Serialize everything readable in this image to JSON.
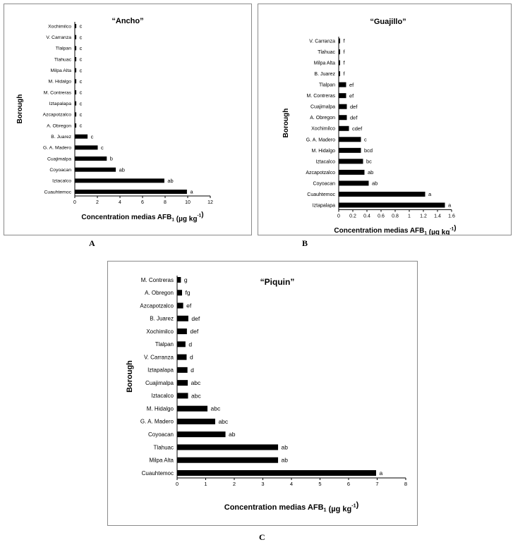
{
  "panels": {
    "a": {
      "letter": "A"
    },
    "b": {
      "letter": "B"
    },
    "c": {
      "letter": "C"
    }
  },
  "chart_data": [
    {
      "id": "a",
      "type": "bar",
      "orientation": "horizontal",
      "title": "“Ancho”",
      "xlabel": "Concentration medias AFB",
      "xlabel_sub": "1",
      "xlabel_unit": " (µg kg",
      "xlabel_sup": "-1",
      "xlabel_end": ")",
      "ylabel": "Borough",
      "xlim": [
        0,
        12
      ],
      "ticks": [
        0,
        2,
        4,
        6,
        8,
        10,
        12
      ],
      "categories": [
        "Xochimilco",
        "V. Carranza",
        "Tlalpan",
        "Tlahuac",
        "Milpa Alta",
        "M. Hidalgo",
        "M. Contreras",
        "Iztapalapa",
        "Azcapotzalco",
        "A. Obregon",
        "B. Juarez",
        "G. A. Madero",
        "Cuajimalpa",
        "Coyoacan",
        "Iztacalco",
        "Cuauhtemoc"
      ],
      "values": [
        0.1,
        0.1,
        0.1,
        0.1,
        0.1,
        0.1,
        0.1,
        0.1,
        0.1,
        0.1,
        1.1,
        2.0,
        2.8,
        3.6,
        7.9,
        9.9
      ],
      "letters": [
        "c",
        "c",
        "c",
        "c",
        "c",
        "c",
        "c",
        "c",
        "c",
        "c",
        "c",
        "c",
        "b",
        "ab",
        "ab",
        "a"
      ]
    },
    {
      "id": "b",
      "type": "bar",
      "orientation": "horizontal",
      "title": "“Guajillo”",
      "xlabel": "Concentration medias AFB",
      "xlabel_sub": "1",
      "xlabel_unit": " (µg kg",
      "xlabel_sup": "-1",
      "xlabel_end": ")",
      "ylabel": "Borough",
      "xlim": [
        0,
        1.6
      ],
      "ticks": [
        0,
        0.2,
        0.4,
        0.6,
        0.8,
        1,
        1.2,
        1.4,
        1.6
      ],
      "categories": [
        "V. Carranza",
        "Tlahuac",
        "Milpa Alta",
        "B. Juarez",
        "Tlalpan",
        "M. Contreras",
        "Cuajimalpa",
        "A. Obregon",
        "Xochimilco",
        "G. A. Madero",
        "M. Hidalgo",
        "Iztacalco",
        "Azcapotzalco",
        "Coyoacan",
        "Cuauhtemoc",
        "Iztapalapa"
      ],
      "values": [
        0.01,
        0.01,
        0.01,
        0.01,
        0.1,
        0.1,
        0.11,
        0.11,
        0.14,
        0.31,
        0.31,
        0.34,
        0.36,
        0.42,
        1.22,
        1.5
      ],
      "letters": [
        "f",
        "f",
        "f",
        "f",
        "ef",
        "ef",
        "def",
        "def",
        "cdef",
        "c",
        "bcd",
        "bc",
        "ab",
        "ab",
        "a",
        "a"
      ]
    },
    {
      "id": "c",
      "type": "bar",
      "orientation": "horizontal",
      "title": "“Piquin”",
      "xlabel": "Concentration medias AFB",
      "xlabel_sub": "1",
      "xlabel_unit": " (µg kg",
      "xlabel_sup": "-1",
      "xlabel_end": ")",
      "ylabel": "Borough",
      "xlim": [
        0,
        8
      ],
      "ticks": [
        0,
        1,
        2,
        3,
        4,
        5,
        6,
        7,
        8
      ],
      "categories": [
        "M. Contreras",
        "A. Obregon",
        "Azcapotzalco",
        "B. Juarez",
        "Xochimilco",
        "Tlalpan",
        "V. Carranza",
        "Iztapalapa",
        "Cuajimalpa",
        "Iztacalco",
        "M. Hidalgo",
        "G. A. Madero",
        "Coyoacan",
        "Tlahuac",
        "Milpa Alta",
        "Cuauhtemoc"
      ],
      "values": [
        0.12,
        0.16,
        0.2,
        0.38,
        0.33,
        0.28,
        0.32,
        0.35,
        0.36,
        0.37,
        1.05,
        1.32,
        1.68,
        3.52,
        3.52,
        6.95
      ],
      "letters": [
        "g",
        "fg",
        "ef",
        "def",
        "def",
        "d",
        "d",
        "d",
        "abc",
        "abc",
        "abc",
        "abc",
        "ab",
        "ab",
        "ab",
        "a"
      ]
    }
  ]
}
